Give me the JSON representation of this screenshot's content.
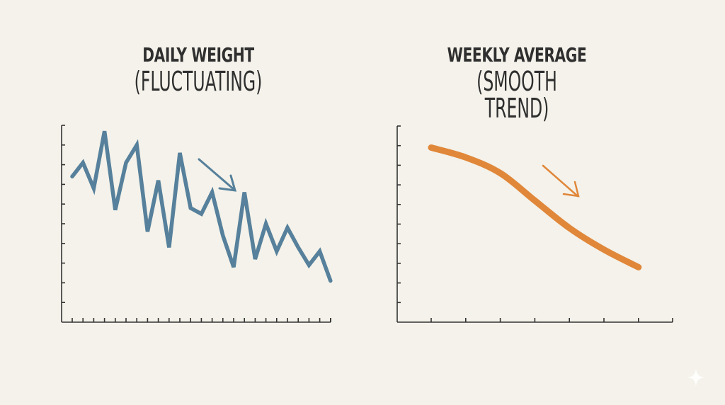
{
  "left_panel": {
    "title_line1": "DAILY WEIGHT",
    "title_line2": "(FLUCTUATING)",
    "line_color": "#56809b",
    "arrow": "down-right-arrow-icon"
  },
  "right_panel": {
    "title_line1": "WEEKLY AVERAGE",
    "title_line2": "(SMOOTH TREND)",
    "line_color": "#e0873a",
    "arrow": "down-right-arrow-icon"
  },
  "chart_data": [
    {
      "type": "line",
      "title": "DAILY WEIGHT (FLUCTUATING)",
      "xlabel": "",
      "ylabel": "",
      "x": [
        1,
        2,
        3,
        4,
        5,
        6,
        7,
        8,
        9,
        10,
        11,
        12,
        13,
        14,
        15,
        16,
        17,
        18,
        19,
        20,
        21,
        22,
        23,
        24,
        25
      ],
      "values": [
        7.4,
        8.1,
        6.8,
        9.7,
        5.7,
        8.1,
        9.0,
        4.6,
        7.2,
        3.8,
        8.6,
        5.8,
        5.5,
        6.6,
        4.4,
        2.8,
        6.6,
        3.2,
        5.0,
        3.6,
        4.8,
        3.8,
        2.9,
        3.6,
        2.1
      ],
      "ylim": [
        0,
        10
      ],
      "y_ticks": 10,
      "x_ticks": 25,
      "grid": false,
      "color": "#56809b",
      "annotation": "downward arrow"
    },
    {
      "type": "line",
      "title": "WEEKLY AVERAGE (SMOOTH TREND)",
      "xlabel": "",
      "ylabel": "",
      "x": [
        1,
        2,
        3,
        4,
        5,
        6,
        7
      ],
      "values": [
        8.9,
        8.4,
        7.6,
        6.2,
        4.8,
        3.7,
        2.8
      ],
      "ylim": [
        0,
        10
      ],
      "y_ticks": 10,
      "x_ticks": 7,
      "grid": false,
      "color": "#e0873a",
      "annotation": "downward arrow"
    }
  ]
}
